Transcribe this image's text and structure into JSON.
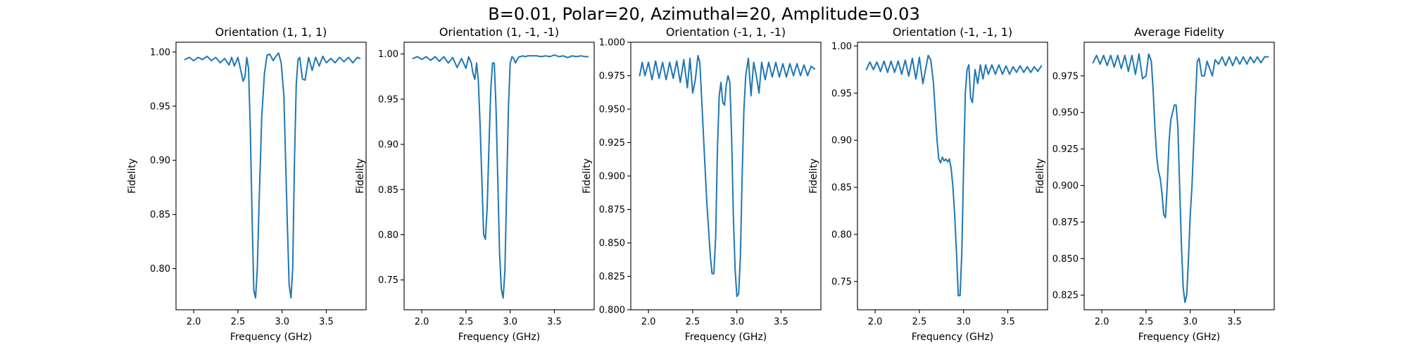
{
  "figure": {
    "suptitle": "B=0.01, Polar=20, Azimuthal=20, Amplitude=0.03",
    "line_color": "#1f77b4"
  },
  "chart_data": [
    {
      "type": "line",
      "title": "Orientation (1, 1, 1)",
      "xlabel": "Frequency (GHz)",
      "ylabel": "Fidelity",
      "xlim": [
        1.8,
        3.95
      ],
      "ylim": [
        0.762,
        1.009
      ],
      "xticks": [
        "2.0",
        "2.5",
        "3.0",
        "3.5"
      ],
      "yticks": [
        "0.80",
        "0.85",
        "0.90",
        "0.95",
        "1.00"
      ],
      "series": [
        {
          "x": [
            1.9,
            1.95,
            2.0,
            2.05,
            2.1,
            2.15,
            2.2,
            2.25,
            2.3,
            2.35,
            2.4,
            2.43,
            2.46,
            2.5,
            2.53,
            2.56,
            2.58,
            2.6,
            2.62,
            2.64,
            2.66,
            2.68,
            2.7,
            2.72,
            2.74,
            2.77,
            2.8,
            2.83,
            2.86,
            2.9,
            2.93,
            2.96,
            2.99,
            3.02,
            3.04,
            3.06,
            3.08,
            3.1,
            3.12,
            3.14,
            3.16,
            3.18,
            3.2,
            3.23,
            3.26,
            3.3,
            3.34,
            3.38,
            3.42,
            3.46,
            3.5,
            3.55,
            3.6,
            3.65,
            3.7,
            3.75,
            3.8,
            3.85,
            3.88
          ],
          "y": [
            0.993,
            0.995,
            0.992,
            0.995,
            0.993,
            0.996,
            0.992,
            0.995,
            0.99,
            0.994,
            0.988,
            0.995,
            0.987,
            0.995,
            0.984,
            0.973,
            0.977,
            0.995,
            0.985,
            0.93,
            0.85,
            0.78,
            0.773,
            0.8,
            0.86,
            0.94,
            0.98,
            0.997,
            0.998,
            0.992,
            0.996,
            0.999,
            0.99,
            0.96,
            0.9,
            0.84,
            0.785,
            0.773,
            0.8,
            0.9,
            0.97,
            0.993,
            0.995,
            0.975,
            0.974,
            0.995,
            0.983,
            0.995,
            0.987,
            0.996,
            0.99,
            0.994,
            0.99,
            0.995,
            0.991,
            0.995,
            0.99,
            0.995,
            0.994
          ]
        }
      ]
    },
    {
      "type": "line",
      "title": "Orientation (1, -1, -1)",
      "xlabel": "Frequency (GHz)",
      "ylabel": "Fidelity",
      "xlim": [
        1.8,
        3.95
      ],
      "ylim": [
        0.717,
        1.013
      ],
      "xticks": [
        "2.0",
        "2.5",
        "3.0",
        "3.5"
      ],
      "yticks": [
        "0.75",
        "0.80",
        "0.85",
        "0.90",
        "0.95",
        "1.00"
      ],
      "series": [
        {
          "x": [
            1.9,
            1.95,
            2.0,
            2.05,
            2.1,
            2.15,
            2.2,
            2.25,
            2.3,
            2.35,
            2.4,
            2.45,
            2.5,
            2.53,
            2.56,
            2.58,
            2.6,
            2.62,
            2.64,
            2.66,
            2.68,
            2.7,
            2.72,
            2.74,
            2.76,
            2.78,
            2.8,
            2.82,
            2.84,
            2.86,
            2.88,
            2.9,
            2.92,
            2.94,
            2.96,
            2.98,
            3.0,
            3.02,
            3.04,
            3.06,
            3.08,
            3.1,
            3.12,
            3.14,
            3.17,
            3.2,
            3.25,
            3.3,
            3.35,
            3.4,
            3.45,
            3.5,
            3.55,
            3.6,
            3.65,
            3.7,
            3.75,
            3.8,
            3.85,
            3.88
          ],
          "y": [
            0.995,
            0.997,
            0.994,
            0.997,
            0.993,
            0.997,
            0.992,
            0.997,
            0.99,
            0.996,
            0.985,
            0.995,
            0.984,
            0.997,
            0.99,
            0.978,
            0.972,
            0.99,
            0.97,
            0.92,
            0.86,
            0.8,
            0.795,
            0.83,
            0.9,
            0.96,
            0.99,
            0.99,
            0.94,
            0.86,
            0.78,
            0.74,
            0.73,
            0.76,
            0.85,
            0.94,
            0.99,
            0.997,
            0.995,
            0.99,
            0.994,
            0.997,
            0.997,
            0.998,
            0.997,
            0.998,
            0.998,
            0.998,
            0.997,
            0.998,
            0.997,
            0.999,
            0.997,
            0.998,
            0.996,
            0.998,
            0.997,
            0.998,
            0.997,
            0.997
          ]
        }
      ]
    },
    {
      "type": "line",
      "title": "Orientation (-1, 1, -1)",
      "xlabel": "Frequency (GHz)",
      "ylabel": "Fidelity",
      "xlim": [
        1.8,
        3.95
      ],
      "ylim": [
        0.8,
        1.0
      ],
      "xticks": [
        "2.0",
        "2.5",
        "3.0",
        "3.5"
      ],
      "yticks": [
        "0.800",
        "0.825",
        "0.850",
        "0.875",
        "0.900",
        "0.925",
        "0.950",
        "0.975",
        "1.000"
      ],
      "series": [
        {
          "x": [
            1.9,
            1.93,
            1.96,
            2.0,
            2.04,
            2.08,
            2.12,
            2.16,
            2.2,
            2.24,
            2.28,
            2.32,
            2.36,
            2.4,
            2.44,
            2.47,
            2.5,
            2.53,
            2.56,
            2.58,
            2.6,
            2.63,
            2.66,
            2.68,
            2.7,
            2.72,
            2.74,
            2.76,
            2.78,
            2.8,
            2.82,
            2.84,
            2.86,
            2.88,
            2.9,
            2.92,
            2.94,
            2.96,
            2.98,
            3.0,
            3.02,
            3.04,
            3.06,
            3.08,
            3.1,
            3.13,
            3.16,
            3.19,
            3.22,
            3.25,
            3.28,
            3.32,
            3.36,
            3.4,
            3.44,
            3.48,
            3.52,
            3.56,
            3.6,
            3.64,
            3.68,
            3.72,
            3.76,
            3.8,
            3.84,
            3.88
          ],
          "y": [
            0.975,
            0.985,
            0.975,
            0.985,
            0.972,
            0.986,
            0.973,
            0.985,
            0.972,
            0.985,
            0.973,
            0.986,
            0.97,
            0.987,
            0.966,
            0.988,
            0.962,
            0.972,
            0.99,
            0.985,
            0.96,
            0.92,
            0.88,
            0.86,
            0.84,
            0.827,
            0.827,
            0.855,
            0.92,
            0.96,
            0.97,
            0.955,
            0.953,
            0.968,
            0.975,
            0.97,
            0.93,
            0.87,
            0.83,
            0.81,
            0.812,
            0.84,
            0.9,
            0.95,
            0.975,
            0.988,
            0.96,
            0.985,
            0.975,
            0.962,
            0.985,
            0.972,
            0.985,
            0.974,
            0.985,
            0.974,
            0.984,
            0.974,
            0.984,
            0.975,
            0.984,
            0.975,
            0.983,
            0.975,
            0.982,
            0.98
          ]
        }
      ]
    },
    {
      "type": "line",
      "title": "Orientation (-1, -1, 1)",
      "xlabel": "Frequency (GHz)",
      "ylabel": "Fidelity",
      "xlim": [
        1.8,
        3.95
      ],
      "ylim": [
        0.72,
        1.004
      ],
      "xticks": [
        "2.0",
        "2.5",
        "3.0",
        "3.5"
      ],
      "yticks": [
        "0.75",
        "0.80",
        "0.85",
        "0.90",
        "0.95",
        "1.00"
      ],
      "series": [
        {
          "x": [
            1.9,
            1.94,
            1.98,
            2.02,
            2.06,
            2.1,
            2.14,
            2.18,
            2.22,
            2.26,
            2.3,
            2.34,
            2.38,
            2.42,
            2.46,
            2.5,
            2.54,
            2.57,
            2.6,
            2.63,
            2.66,
            2.68,
            2.7,
            2.72,
            2.74,
            2.76,
            2.78,
            2.8,
            2.82,
            2.84,
            2.86,
            2.88,
            2.9,
            2.92,
            2.94,
            2.96,
            2.98,
            3.0,
            3.02,
            3.04,
            3.06,
            3.08,
            3.1,
            3.13,
            3.16,
            3.19,
            3.22,
            3.25,
            3.28,
            3.32,
            3.36,
            3.4,
            3.44,
            3.48,
            3.52,
            3.56,
            3.6,
            3.64,
            3.68,
            3.72,
            3.76,
            3.8,
            3.84,
            3.88
          ],
          "y": [
            0.975,
            0.983,
            0.975,
            0.983,
            0.973,
            0.984,
            0.972,
            0.984,
            0.972,
            0.984,
            0.97,
            0.985,
            0.968,
            0.987,
            0.965,
            0.988,
            0.96,
            0.975,
            0.99,
            0.985,
            0.96,
            0.93,
            0.9,
            0.88,
            0.876,
            0.882,
            0.878,
            0.88,
            0.877,
            0.88,
            0.87,
            0.85,
            0.82,
            0.78,
            0.735,
            0.735,
            0.78,
            0.87,
            0.95,
            0.975,
            0.98,
            0.945,
            0.94,
            0.975,
            0.96,
            0.98,
            0.965,
            0.98,
            0.97,
            0.98,
            0.97,
            0.98,
            0.97,
            0.979,
            0.97,
            0.978,
            0.972,
            0.979,
            0.972,
            0.978,
            0.972,
            0.978,
            0.973,
            0.979
          ]
        }
      ]
    },
    {
      "type": "line",
      "title": "Average Fidelity",
      "xlabel": "Frequency (GHz)",
      "ylabel": "Fidelity",
      "xlim": [
        1.8,
        3.95
      ],
      "ylim": [
        0.815,
        0.998
      ],
      "xticks": [
        "2.0",
        "2.5",
        "3.0",
        "3.5"
      ],
      "yticks": [
        "0.825",
        "0.850",
        "0.875",
        "0.900",
        "0.925",
        "0.950",
        "0.975"
      ],
      "series": [
        {
          "x": [
            1.9,
            1.94,
            1.98,
            2.02,
            2.06,
            2.1,
            2.14,
            2.18,
            2.22,
            2.26,
            2.3,
            2.34,
            2.38,
            2.42,
            2.46,
            2.5,
            2.53,
            2.56,
            2.58,
            2.6,
            2.62,
            2.64,
            2.66,
            2.68,
            2.7,
            2.72,
            2.74,
            2.76,
            2.78,
            2.8,
            2.82,
            2.84,
            2.86,
            2.88,
            2.9,
            2.92,
            2.94,
            2.96,
            2.98,
            3.0,
            3.02,
            3.04,
            3.06,
            3.08,
            3.1,
            3.13,
            3.16,
            3.19,
            3.22,
            3.25,
            3.28,
            3.32,
            3.36,
            3.4,
            3.44,
            3.48,
            3.52,
            3.56,
            3.6,
            3.64,
            3.68,
            3.72,
            3.76,
            3.8,
            3.84,
            3.88
          ],
          "y": [
            0.984,
            0.989,
            0.983,
            0.989,
            0.982,
            0.989,
            0.981,
            0.989,
            0.98,
            0.989,
            0.978,
            0.989,
            0.976,
            0.99,
            0.973,
            0.975,
            0.99,
            0.985,
            0.965,
            0.94,
            0.92,
            0.91,
            0.905,
            0.895,
            0.88,
            0.878,
            0.9,
            0.93,
            0.945,
            0.95,
            0.955,
            0.955,
            0.94,
            0.9,
            0.86,
            0.83,
            0.82,
            0.825,
            0.85,
            0.88,
            0.9,
            0.93,
            0.96,
            0.985,
            0.987,
            0.975,
            0.975,
            0.985,
            0.98,
            0.975,
            0.986,
            0.983,
            0.988,
            0.982,
            0.988,
            0.982,
            0.988,
            0.983,
            0.988,
            0.983,
            0.988,
            0.984,
            0.988,
            0.984,
            0.988,
            0.988
          ]
        }
      ]
    }
  ]
}
